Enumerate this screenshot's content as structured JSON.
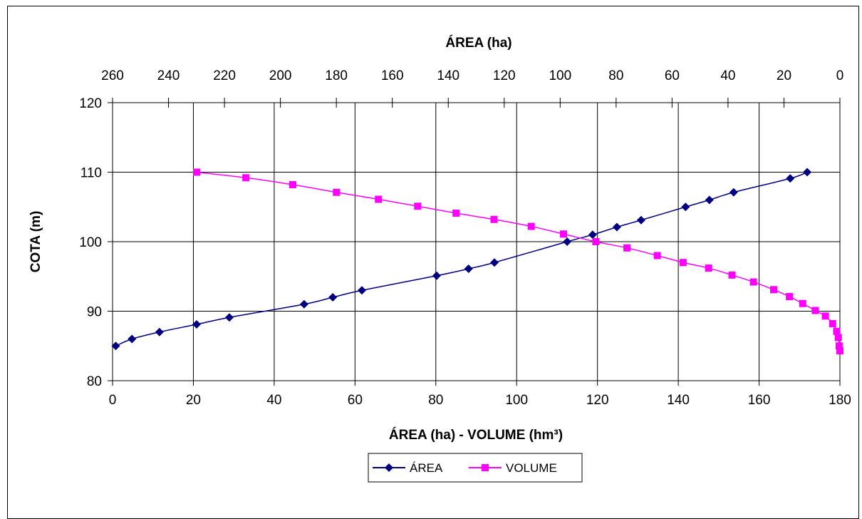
{
  "chart_data": {
    "type": "line",
    "title": "",
    "xlabel": "ÁREA (ha) - VOLUME (hm³)",
    "x2label": "ÁREA (ha)",
    "ylabel": "COTA (m)",
    "xlim": [
      0,
      180
    ],
    "x2lim": [
      260,
      0
    ],
    "ylim": [
      80,
      120
    ],
    "x_ticks": [
      "0",
      "20",
      "40",
      "60",
      "80",
      "100",
      "120",
      "140",
      "160",
      "180"
    ],
    "x2_ticks": [
      "260",
      "240",
      "220",
      "200",
      "180",
      "160",
      "140",
      "120",
      "100",
      "80",
      "60",
      "40",
      "20",
      "0"
    ],
    "y_ticks": [
      "80",
      "90",
      "100",
      "110",
      "120"
    ],
    "grid": true,
    "legend_position": "bottom",
    "series": [
      {
        "name": "ÁREA",
        "color": "#000080",
        "marker": "diamond",
        "points": [
          [
            0.8,
            85
          ],
          [
            4.8,
            86
          ],
          [
            11.6,
            87
          ],
          [
            20.8,
            88.1
          ],
          [
            28.9,
            89.1
          ],
          [
            47.4,
            91
          ],
          [
            54.5,
            92
          ],
          [
            61.7,
            93
          ],
          [
            80.2,
            95.1
          ],
          [
            88.1,
            96.1
          ],
          [
            94.5,
            97
          ],
          [
            112.5,
            100
          ],
          [
            118.8,
            101
          ],
          [
            124.8,
            102.1
          ],
          [
            130.8,
            103.1
          ],
          [
            141.8,
            105
          ],
          [
            147.7,
            106
          ],
          [
            153.7,
            107.1
          ],
          [
            167.7,
            109.1
          ],
          [
            171.9,
            110
          ]
        ]
      },
      {
        "name": "VOLUME",
        "color": "#ff00ff",
        "marker": "square",
        "points": [
          [
            20.8,
            110
          ],
          [
            33.0,
            109.2
          ],
          [
            44.6,
            108.2
          ],
          [
            55.4,
            107.1
          ],
          [
            65.8,
            106.1
          ],
          [
            75.5,
            105.1
          ],
          [
            85.0,
            104.1
          ],
          [
            94.4,
            103.2
          ],
          [
            103.6,
            102.2
          ],
          [
            111.6,
            101.1
          ],
          [
            119.6,
            100
          ],
          [
            127.3,
            99.1
          ],
          [
            134.8,
            98
          ],
          [
            141.2,
            97
          ],
          [
            147.5,
            96.2
          ],
          [
            153.3,
            95.2
          ],
          [
            158.6,
            94.2
          ],
          [
            163.6,
            93.1
          ],
          [
            167.5,
            92.1
          ],
          [
            170.8,
            91.1
          ],
          [
            173.9,
            90.1
          ],
          [
            176.4,
            89.3
          ],
          [
            178.2,
            88.2
          ],
          [
            179.2,
            87.1
          ],
          [
            179.6,
            86.2
          ],
          [
            179.8,
            85
          ],
          [
            180,
            84.3
          ]
        ]
      }
    ]
  }
}
